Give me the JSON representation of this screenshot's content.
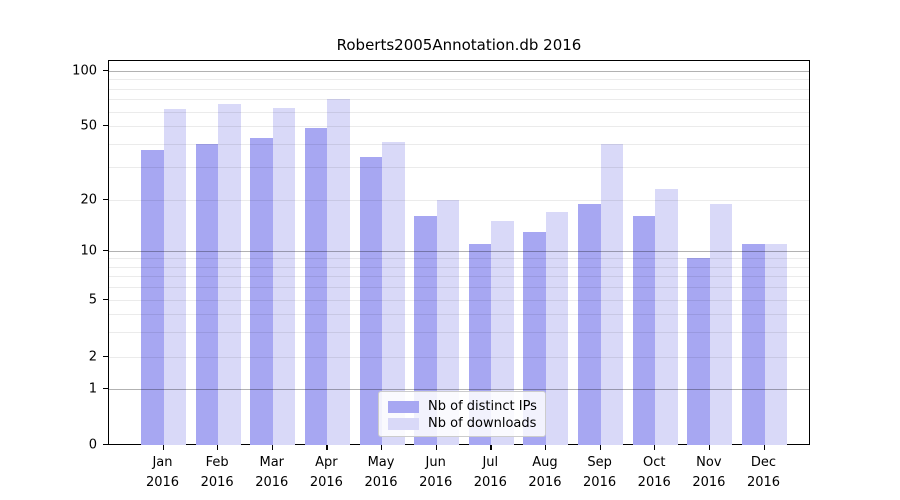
{
  "chart_data": {
    "type": "bar",
    "title": "Roberts2005Annotation.db 2016",
    "categories": [
      "Jan 2016",
      "Feb 2016",
      "Mar 2016",
      "Apr 2016",
      "May 2016",
      "Jun 2016",
      "Jul 2016",
      "Aug 2016",
      "Sep 2016",
      "Oct 2016",
      "Nov 2016",
      "Dec 2016"
    ],
    "series": [
      {
        "name": "Nb of distinct IPs",
        "color": "#a7a7f2",
        "values": [
          37,
          40,
          43,
          49,
          34,
          16,
          11,
          13,
          19,
          16,
          9,
          11
        ]
      },
      {
        "name": "Nb of downloads",
        "color": "#d9d9f8",
        "values": [
          62,
          66,
          63,
          70,
          41,
          20,
          15,
          17,
          40,
          23,
          19,
          11
        ]
      }
    ],
    "yscale": "symlog",
    "yticks": [
      0,
      1,
      2,
      5,
      10,
      20,
      50,
      100
    ],
    "ytick_labels": [
      "0",
      "1",
      "2",
      "5",
      "10",
      "20",
      "50",
      "100"
    ],
    "minor_grid_values": [
      2,
      3,
      4,
      5,
      6,
      7,
      8,
      9,
      20,
      30,
      40,
      50,
      60,
      70,
      80,
      90
    ],
    "major_grid_values": [
      1,
      10,
      100
    ],
    "ylim": [
      0,
      115
    ],
    "grid": true,
    "legend_position": "lower-center"
  }
}
